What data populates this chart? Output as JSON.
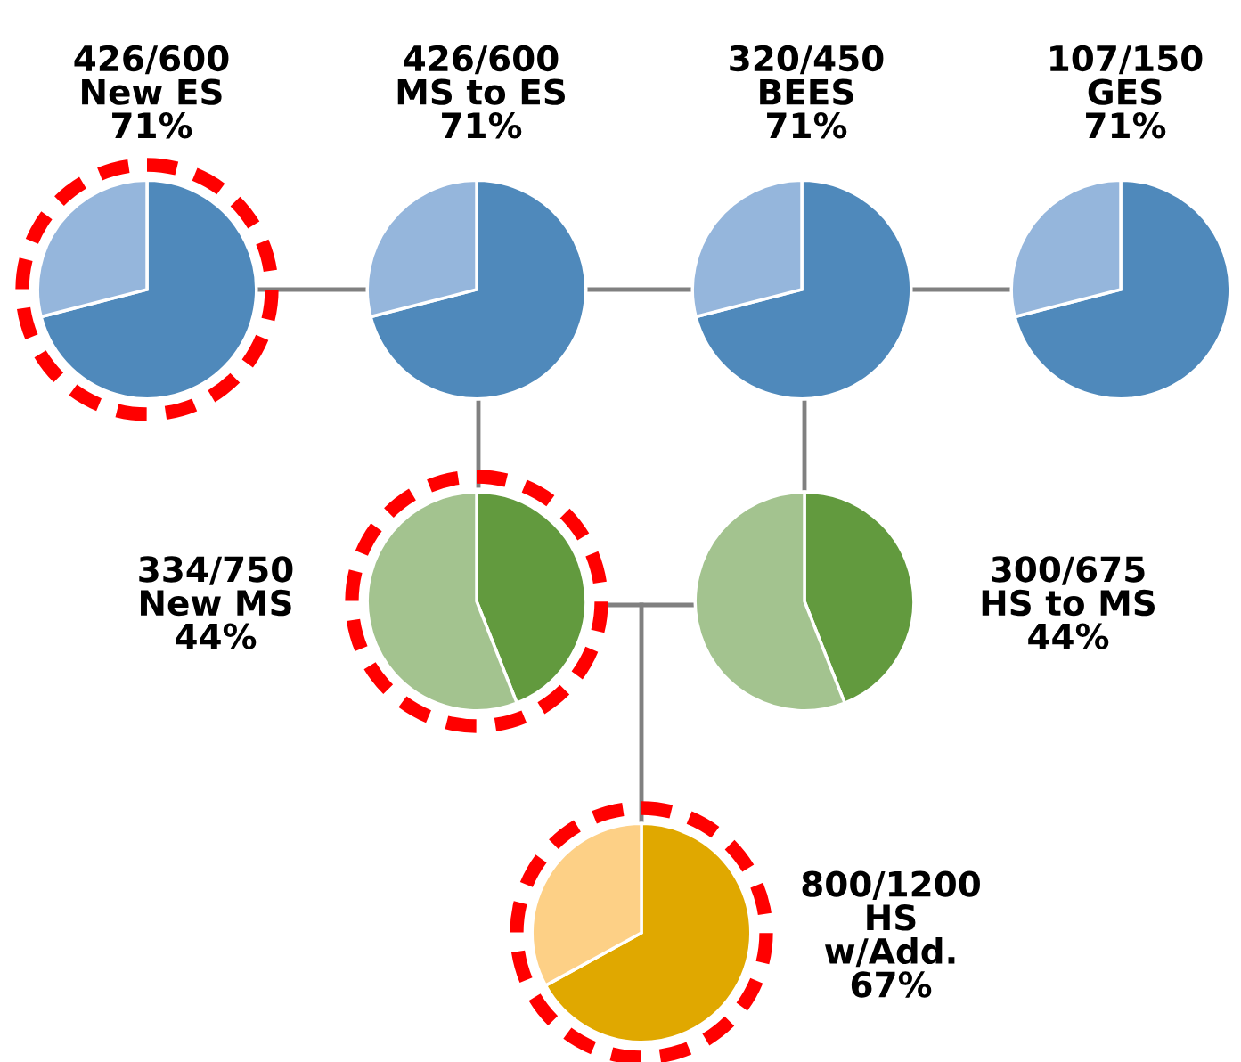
{
  "chart_data": [
    {
      "type": "pie",
      "title": "426/600\nNew ES\n71%",
      "categories": [
        null,
        null
      ],
      "values": [
        71,
        29
      ],
      "colors": [
        "#4f89bb",
        "#95b6dc"
      ]
    },
    {
      "type": "pie",
      "title": "426/600\nMS to ES\n71%",
      "categories": [
        null,
        null
      ],
      "values": [
        71,
        29
      ],
      "colors": [
        "#4f89bb",
        "#95b6dc"
      ]
    },
    {
      "type": "pie",
      "title": "320/450\nBEES\n71%",
      "categories": [
        null,
        null
      ],
      "values": [
        71,
        29
      ],
      "colors": [
        "#4f89bb",
        "#95b6dc"
      ]
    },
    {
      "type": "pie",
      "title": "107/150\nGES\n71%",
      "categories": [
        null,
        null
      ],
      "values": [
        71,
        29
      ],
      "colors": [
        "#4f89bb",
        "#95b6dc"
      ]
    },
    {
      "type": "pie",
      "title": "334/750\nNew MS\n44%",
      "categories": [
        null,
        null
      ],
      "values": [
        44,
        56
      ],
      "colors": [
        "#629a3e",
        "#a3c38f"
      ]
    },
    {
      "type": "pie",
      "title": "300/675\nHS to MS\n44%",
      "categories": [
        null,
        null
      ],
      "values": [
        44,
        56
      ],
      "colors": [
        "#629a3e",
        "#a3c38f"
      ]
    },
    {
      "type": "pie",
      "title": "800/1200\nHS\nw/Add.\n67%",
      "categories": [
        null,
        null
      ],
      "values": [
        67,
        33
      ],
      "colors": [
        "#e0a800",
        "#fdd086"
      ]
    }
  ]
}
